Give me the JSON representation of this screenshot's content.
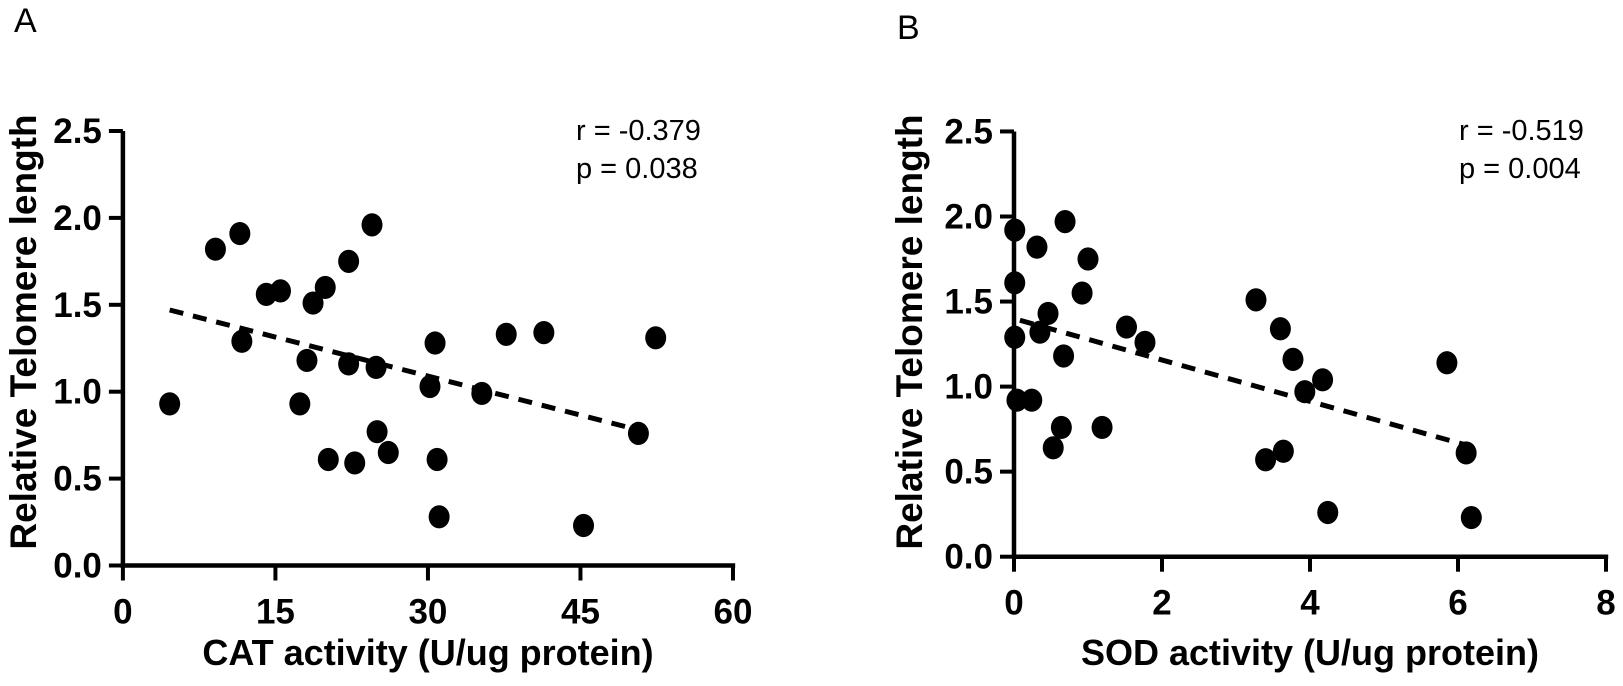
{
  "figure": {
    "type": "two-panel-scatter-figure",
    "background": "#ffffff",
    "ink_color": "#000000"
  },
  "chart_data": [
    {
      "type": "scatter",
      "panel_label": "A",
      "title": "",
      "xlabel": "CAT activity (U/ug protein)",
      "ylabel": "Relative Telomere length",
      "xlim": [
        0,
        60
      ],
      "ylim": [
        0,
        2.5
      ],
      "xticks": [
        "0",
        "15",
        "30",
        "45",
        "60"
      ],
      "yticks": [
        "0.0",
        "0.5",
        "1.0",
        "1.5",
        "2.0",
        "2.5"
      ],
      "grid": false,
      "legend_position": "none",
      "annotations": [
        "r = -0.379",
        "p = 0.038"
      ],
      "marker": {
        "shape": "circle",
        "fill": "#000000"
      },
      "trendline": {
        "style": "dashed",
        "x1": 4.6,
        "y1": 1.47,
        "x2": 50.7,
        "y2": 0.78
      },
      "points": [
        [
          4.6,
          0.93
        ],
        [
          9.1,
          1.82
        ],
        [
          11.5,
          1.91
        ],
        [
          11.7,
          1.29
        ],
        [
          14.1,
          1.56
        ],
        [
          15.5,
          1.58
        ],
        [
          17.4,
          0.93
        ],
        [
          18.1,
          1.18
        ],
        [
          18.7,
          1.51
        ],
        [
          19.9,
          1.6
        ],
        [
          20.2,
          0.61
        ],
        [
          22.2,
          1.75
        ],
        [
          22.2,
          1.16
        ],
        [
          22.8,
          0.59
        ],
        [
          24.5,
          1.96
        ],
        [
          24.9,
          1.14
        ],
        [
          25.0,
          0.77
        ],
        [
          26.1,
          0.65
        ],
        [
          30.2,
          1.03
        ],
        [
          30.7,
          1.28
        ],
        [
          30.9,
          0.61
        ],
        [
          31.1,
          0.28
        ],
        [
          35.3,
          0.99
        ],
        [
          37.7,
          1.33
        ],
        [
          41.4,
          1.34
        ],
        [
          45.3,
          0.23
        ],
        [
          50.7,
          0.76
        ],
        [
          52.4,
          1.31
        ]
      ]
    },
    {
      "type": "scatter",
      "panel_label": "B",
      "title": "",
      "xlabel": "SOD activity (U/ug protein)",
      "ylabel": "Relative Telomere length",
      "xlim": [
        0,
        8
      ],
      "ylim": [
        0,
        2.5
      ],
      "xticks": [
        "0",
        "2",
        "4",
        "6",
        "8"
      ],
      "yticks": [
        "0.0",
        "0.5",
        "1.0",
        "1.5",
        "2.0",
        "2.5"
      ],
      "grid": false,
      "legend_position": "none",
      "annotations": [
        "r = -0.519",
        "p = 0.004"
      ],
      "marker": {
        "shape": "circle",
        "fill": "#000000"
      },
      "trendline": {
        "style": "dashed",
        "x1": 0.08,
        "y1": 1.39,
        "x2": 6.08,
        "y2": 0.66
      },
      "points": [
        [
          0.01,
          1.92
        ],
        [
          0.01,
          1.61
        ],
        [
          0.01,
          1.29
        ],
        [
          0.04,
          0.92
        ],
        [
          0.24,
          0.92
        ],
        [
          0.31,
          1.82
        ],
        [
          0.35,
          1.32
        ],
        [
          0.46,
          1.43
        ],
        [
          0.53,
          0.64
        ],
        [
          0.64,
          0.76
        ],
        [
          0.67,
          1.18
        ],
        [
          0.69,
          1.97
        ],
        [
          0.92,
          1.55
        ],
        [
          1.0,
          1.75
        ],
        [
          1.19,
          0.76
        ],
        [
          1.52,
          1.35
        ],
        [
          1.77,
          1.26
        ],
        [
          3.27,
          1.51
        ],
        [
          3.4,
          0.57
        ],
        [
          3.6,
          1.34
        ],
        [
          3.64,
          0.62
        ],
        [
          3.77,
          1.16
        ],
        [
          3.93,
          0.97
        ],
        [
          4.17,
          1.04
        ],
        [
          4.24,
          0.26
        ],
        [
          5.85,
          1.14
        ],
        [
          6.11,
          0.61
        ],
        [
          6.18,
          0.23
        ]
      ]
    }
  ]
}
